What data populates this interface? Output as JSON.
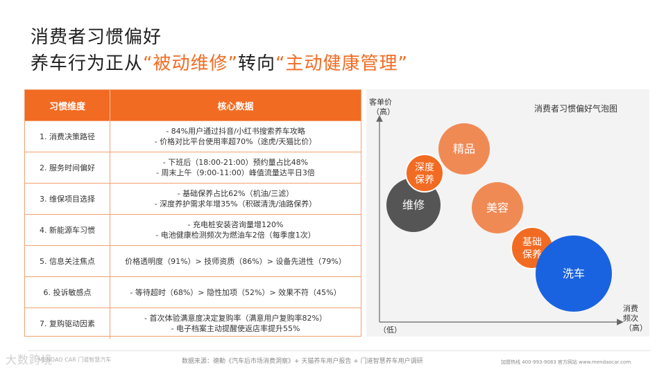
{
  "title": {
    "line1": "消费者习惯偏好",
    "line2_prefix": "养车行为正从",
    "line2_hl1": "“被动维修”",
    "line2_mid": "转向",
    "line2_hl2": "“主动健康管理”"
  },
  "table": {
    "headers": [
      "习惯维度",
      "核心数据"
    ],
    "rows": [
      {
        "dim": "1. 消费决策路径",
        "data": [
          "- 84%用户通过抖音/小红书搜索养车攻略",
          "- 价格对比平台使用率超70%（途虎/天猫比价）"
        ]
      },
      {
        "dim": "2. 服务时间偏好",
        "data": [
          "- 下班后（18:00-21:00）预约量占比48%",
          "- 周末上午（9:00-11:00）峰值流量达平日3倍"
        ]
      },
      {
        "dim": "3. 维保项目选择",
        "data": [
          "- 基础保养占比62%（机油/三滤）",
          "- 深度养护需求年增35%（积碳清洗/油路保养）"
        ]
      },
      {
        "dim": "4. 新能源车习惯",
        "data": [
          "- 充电桩安装咨询量增120%",
          "- 电池健康检测频次为燃油车2倍（每季度1次）"
        ]
      },
      {
        "dim": "5. 信息关注焦点",
        "data": [
          "价格透明度（91%）> 技师资质（86%）> 设备先进性（79%）"
        ]
      },
      {
        "dim": "6. 投诉敏感点",
        "data": [
          "- 等待超时（68%）> 隐性加项（52%）> 效果不符（45%）"
        ]
      },
      {
        "dim": "7. 复购驱动因素",
        "data": [
          "- 首次体验满意度决定复购率（满意用户复购率82%）",
          "- 电子档案主动提醒使返店率提升55%"
        ]
      }
    ]
  },
  "chart_data": {
    "type": "bubble",
    "title": "消费者习惯偏好气泡图",
    "ylabel": "客单价",
    "ylabel_high": "（高）",
    "xlabel": "消费频次",
    "xlabel_high": "（高）",
    "origin_label": "（低）",
    "colors": {
      "dark": "#555555",
      "orange": "#f08a55",
      "orange_deep": "#f26b22",
      "blue": "#1a63e0"
    },
    "bubbles": [
      {
        "label": [
          "维修"
        ],
        "color": "#555555"
      },
      {
        "label": [
          "深度",
          "保养"
        ],
        "color": "#f26b22"
      },
      {
        "label": [
          "精品"
        ],
        "color": "#f08a55"
      },
      {
        "label": [
          "美容"
        ],
        "color": "#f08a55"
      },
      {
        "label": [
          "基础",
          "保养"
        ],
        "color": "#f26b22"
      },
      {
        "label": [
          "洗车"
        ],
        "color": "#1a63e0"
      }
    ]
  },
  "footer": {
    "logo": "大数跨境",
    "brand": "MENDAO CAR 门道智慧汽车",
    "source": "数据来源：德勤《汽车后市场消费洞察》+ 天猫养车用户报告 + 门道智慧养车用户调研",
    "contact": "加盟热线   400-993-9083     官方网站   www.mendaocar.com"
  }
}
